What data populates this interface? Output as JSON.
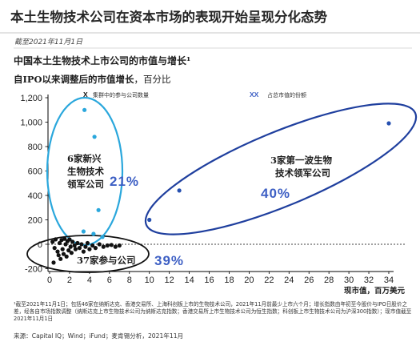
{
  "header": {
    "title": "本土生物技术公司在资本市场的表现开始呈现分化态势",
    "as_of": "截至2021年11月1日"
  },
  "chart_data": {
    "type": "scatter",
    "title": "中国本土生物技术上市公司的市值与增长¹",
    "subtitle_bold": "自IPO以来调整后的市值增长",
    "subtitle_rest": "，百分比",
    "xlabel": "现市值，百万美元",
    "xlim": [
      0,
      34
    ],
    "ylim": [
      -200,
      1200
    ],
    "grid": false,
    "zero_line": "dotted",
    "legend": {
      "position": "top",
      "count_marker": "X",
      "count_text": "集群中的参与公司数量",
      "share_marker": "XX",
      "share_text": "占总市值的份额"
    },
    "x_ticks": [
      {
        "value": 0,
        "label": "0"
      },
      {
        "value": 2,
        "label": "2"
      },
      {
        "value": 4,
        "label": "4"
      },
      {
        "value": 6,
        "label": "6"
      },
      {
        "value": 8,
        "label": "8"
      },
      {
        "value": 10,
        "label": "10"
      },
      {
        "value": 12,
        "label": "12"
      },
      {
        "value": 14,
        "label": "14"
      },
      {
        "value": 16,
        "label": "16"
      },
      {
        "value": 18,
        "label": "18"
      },
      {
        "value": 20,
        "label": "20"
      },
      {
        "value": 22,
        "label": "22"
      },
      {
        "value": 24,
        "label": "24"
      },
      {
        "value": 26,
        "label": "26"
      },
      {
        "value": 28,
        "label": "28"
      },
      {
        "value": 30,
        "label": "30"
      },
      {
        "value": 32,
        "label": "32"
      },
      {
        "value": 34,
        "label": "34"
      }
    ],
    "y_ticks": [
      {
        "value": 1200,
        "label": "1,200"
      },
      {
        "value": 1000,
        "label": "1,000"
      },
      {
        "value": 800,
        "label": "800"
      },
      {
        "value": 600,
        "label": "600"
      },
      {
        "value": 400,
        "label": "400"
      },
      {
        "value": 200,
        "label": "200"
      },
      {
        "value": 0,
        "label": "0"
      },
      {
        "value": -200,
        "label": "-200"
      }
    ],
    "clusters": [
      {
        "label_lines": [
          "6家新兴",
          "生物技术",
          "领军公司"
        ],
        "share": "21%",
        "color": "#2aa7dc",
        "points": [
          [
            3.5,
            1100
          ],
          [
            4.5,
            880
          ],
          [
            4.9,
            280
          ],
          [
            3.4,
            105
          ],
          [
            4.4,
            85
          ],
          [
            5.3,
            60
          ]
        ]
      },
      {
        "label_lines": [
          "3家第一波生物",
          "技术领军公司"
        ],
        "share": "40%",
        "color": "#2650b0",
        "points": [
          [
            10,
            200
          ],
          [
            13,
            440
          ],
          [
            34,
            990
          ]
        ]
      },
      {
        "label_lines": [
          "37家参与公司"
        ],
        "share": "39%",
        "color": "#111111",
        "points": [
          [
            0.3,
            20
          ],
          [
            0.5,
            -30
          ],
          [
            0.6,
            40
          ],
          [
            0.8,
            -60
          ],
          [
            0.9,
            -90
          ],
          [
            1.0,
            10
          ],
          [
            1.1,
            -120
          ],
          [
            1.2,
            35
          ],
          [
            1.3,
            -40
          ],
          [
            1.4,
            -80
          ],
          [
            1.5,
            45
          ],
          [
            1.6,
            0
          ],
          [
            1.7,
            -100
          ],
          [
            1.8,
            25
          ],
          [
            1.9,
            -50
          ],
          [
            2.0,
            40
          ],
          [
            2.1,
            -20
          ],
          [
            2.2,
            -70
          ],
          [
            2.3,
            20
          ],
          [
            2.5,
            -10
          ],
          [
            2.6,
            -40
          ],
          [
            2.8,
            10
          ],
          [
            3.0,
            -30
          ],
          [
            3.2,
            0
          ],
          [
            3.4,
            -60
          ],
          [
            3.6,
            -20
          ],
          [
            3.8,
            10
          ],
          [
            4.0,
            -40
          ],
          [
            4.3,
            -10
          ],
          [
            4.6,
            -30
          ],
          [
            5.0,
            0
          ],
          [
            5.4,
            -20
          ],
          [
            5.8,
            -10
          ],
          [
            6.2,
            -5
          ],
          [
            6.6,
            -20
          ],
          [
            7.0,
            -10
          ],
          [
            0.4,
            -150
          ]
        ]
      }
    ]
  },
  "colors": {
    "share_text": "#3d5fc4",
    "emerging_ellipse": "#2aa7dc",
    "first_wave_ellipse": "#1f3f9e",
    "participants_ellipse": "#111111"
  },
  "footnote": "¹截至2021年11月1日；包括46家在纳斯达克、香港交易所、上海科创板上市的生物技术公司，2021年11月前最少上市六个月；增长指数由年初至今股价与IPO日股价之差，经各自市场指数调整（纳斯达克上市生物技术公司为纳斯达克指数；香港交易所上市生物技术公司为恒生指数；科创板上市生物技术公司为沪深300指数）；现市值截至2021年11月1日",
  "source": "来源：Capital IQ；Wind；iFund；麦肯锡分析，2021年11月"
}
